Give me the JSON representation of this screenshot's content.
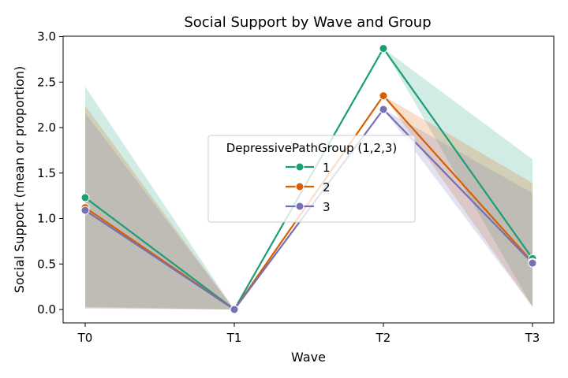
{
  "chart_data": {
    "type": "line",
    "title": "Social Support by Wave and Group",
    "xlabel": "Wave",
    "ylabel": "Social Support (mean or proportion)",
    "categories": [
      "T0",
      "T1",
      "T2",
      "T3"
    ],
    "ylim": [
      -0.14,
      3.0
    ],
    "yticks": [
      "0.0",
      "0.5",
      "1.0",
      "1.5",
      "2.0",
      "2.5",
      "3.0"
    ],
    "grid": false,
    "legend": {
      "title": "DepressivePathGroup (1,2,3)",
      "placement": "center"
    },
    "series": [
      {
        "name": "1",
        "color": "#1b9e77",
        "values": [
          1.23,
          0.0,
          2.87,
          0.56
        ],
        "ci_low": [
          0.02,
          0.0,
          2.87,
          0.03
        ],
        "ci_high": [
          2.45,
          0.0,
          2.87,
          1.65
        ]
      },
      {
        "name": "2",
        "color": "#d95f02",
        "values": [
          1.12,
          0.0,
          2.35,
          0.52
        ],
        "ci_low": [
          0.01,
          0.0,
          2.35,
          0.03
        ],
        "ci_high": [
          2.24,
          0.0,
          2.35,
          1.39
        ]
      },
      {
        "name": "3",
        "color": "#7570b3",
        "values": [
          1.09,
          0.0,
          2.2,
          0.51
        ],
        "ci_low": [
          0.03,
          0.0,
          2.2,
          0.03
        ],
        "ci_high": [
          2.16,
          0.0,
          2.2,
          1.28
        ]
      }
    ]
  }
}
